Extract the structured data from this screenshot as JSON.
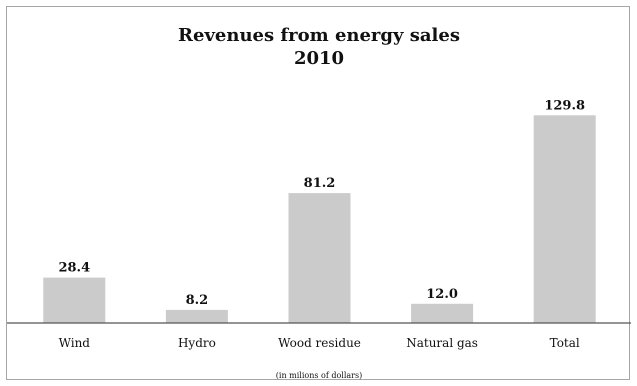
{
  "chart_data": {
    "type": "bar",
    "title": "Revenues from energy sales",
    "subtitle": "2010",
    "categories": [
      "Wind",
      "Hydro",
      "Wood residue",
      "Natural gas",
      "Total"
    ],
    "values": [
      28.4,
      8.2,
      81.2,
      12.0,
      129.8
    ],
    "value_labels": [
      "28.4",
      "8.2",
      "81.2",
      "12.0",
      "129.8"
    ],
    "units_note": "(in milions of dollars)",
    "ylim": [
      0,
      140
    ],
    "grid": false,
    "legend": "none",
    "bar_color": "#cbcbcb",
    "axis_color": "#555555",
    "border_color": "#a6a6a6"
  }
}
